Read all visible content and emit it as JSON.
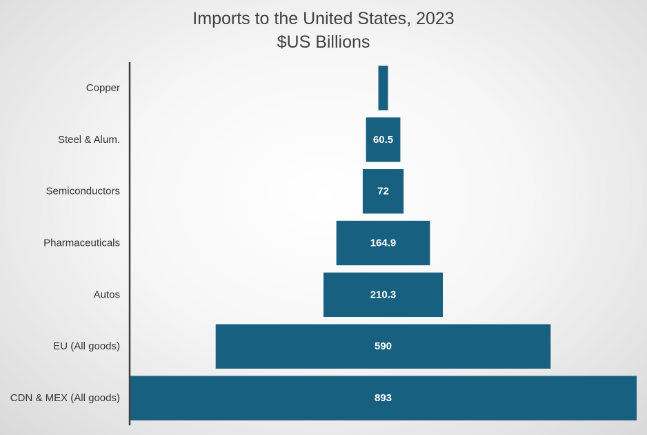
{
  "chart_data": {
    "type": "bar",
    "orientation": "horizontal",
    "style": "funnel",
    "title": "Imports to the United States, 2023",
    "subtitle": "$US Billions",
    "categories": [
      "Copper",
      "Steel & Alum.",
      "Semiconductors",
      "Pharmaceuticals",
      "Autos",
      "EU (All goods)",
      "CDN & MEX (All goods)"
    ],
    "values": [
      17,
      60.5,
      72,
      164.9,
      210.3,
      590,
      893
    ],
    "data_labels": [
      "",
      "60.5",
      "72",
      "164.9",
      "210.3",
      "590",
      "893"
    ],
    "xlabel": "",
    "ylabel": "",
    "xlim": [
      0,
      893
    ],
    "grid": false,
    "legend": "none",
    "colors": {
      "bar": "#17607f",
      "axis": "#404040",
      "label": "#ffffff"
    }
  }
}
